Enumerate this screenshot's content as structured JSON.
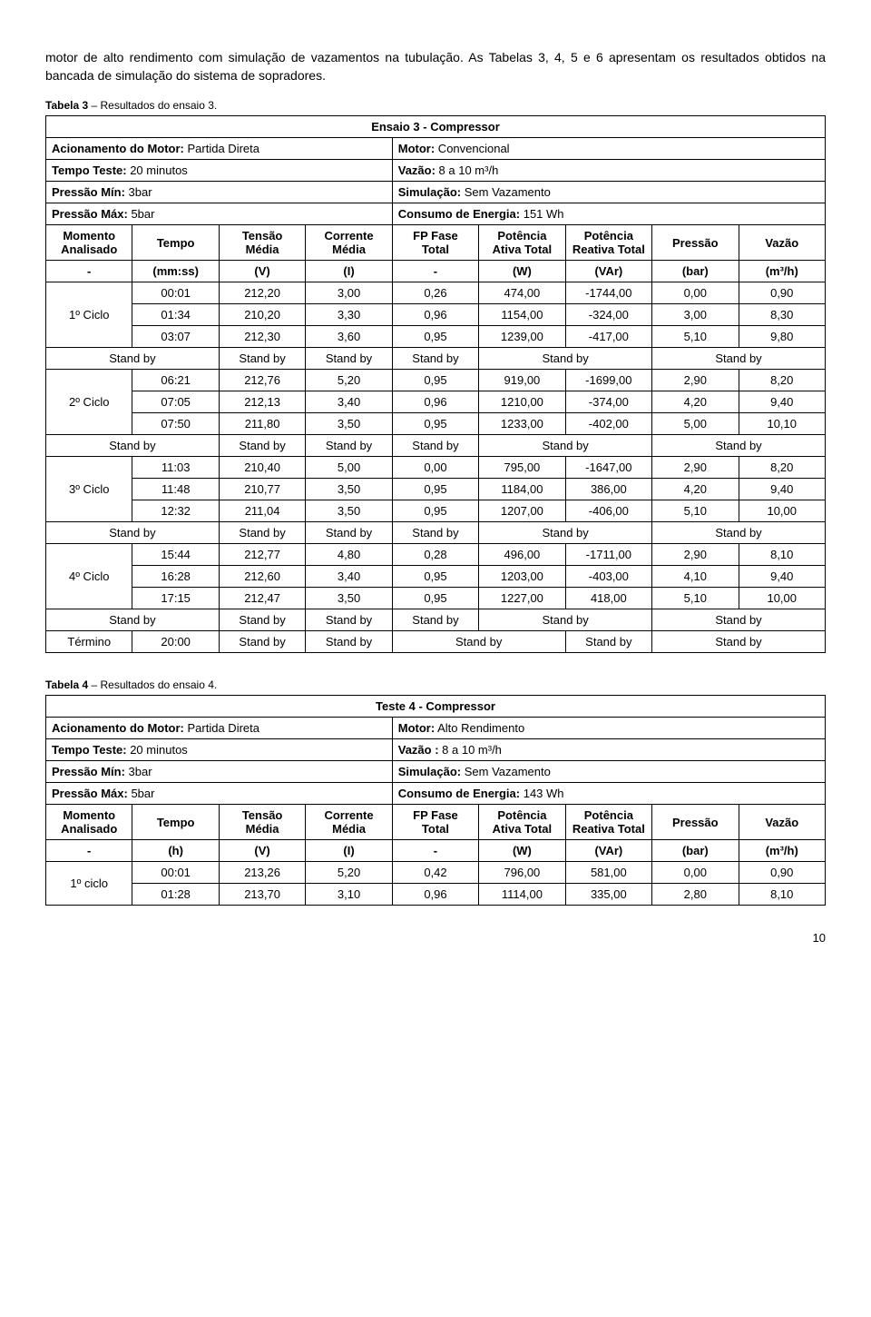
{
  "intro": "motor de alto rendimento com simulação de vazamentos na tubulação. As Tabelas 3, 4, 5 e 6 apresentam os resultados obtidos na bancada de simulação do sistema de sopradores.",
  "table3": {
    "caption": "Tabela 3 – Resultados do ensaio 3.",
    "title": "Ensaio 3 - Compressor",
    "meta": [
      [
        "Acionamento do Motor:  Partida Direta",
        "Motor: Convencional"
      ],
      [
        "Tempo Teste: 20 minutos",
        "Vazão: 8 a 10 m³/h"
      ],
      [
        "Pressão Mín: 3bar",
        "Simulação: Sem Vazamento"
      ],
      [
        "Pressão Máx: 5bar",
        "Consumo de Energia: 151 Wh"
      ]
    ],
    "headers": [
      "Momento Analisado",
      "Tempo",
      "Tensão Média",
      "Corrente Média",
      "FP Fase Total",
      "Potência Ativa Total",
      "Potência Reativa Total",
      "Pressão",
      "Vazão"
    ],
    "units": [
      "-",
      "(mm:ss)",
      "(V)",
      "(I)",
      "-",
      "(W)",
      "(VAr)",
      "(bar)",
      "(m³/h)"
    ],
    "cycles": [
      {
        "label": "1º Ciclo",
        "rows": [
          [
            "00:01",
            "212,20",
            "3,00",
            "0,26",
            "474,00",
            "-1744,00",
            "0,00",
            "0,90"
          ],
          [
            "01:34",
            "210,20",
            "3,30",
            "0,96",
            "1154,00",
            "-324,00",
            "3,00",
            "8,30"
          ],
          [
            "03:07",
            "212,30",
            "3,60",
            "0,95",
            "1239,00",
            "-417,00",
            "5,10",
            "9,80"
          ]
        ]
      },
      {
        "label": "2º Ciclo",
        "rows": [
          [
            "06:21",
            "212,76",
            "5,20",
            "0,95",
            "919,00",
            "-1699,00",
            "2,90",
            "8,20"
          ],
          [
            "07:05",
            "212,13",
            "3,40",
            "0,96",
            "1210,00",
            "-374,00",
            "4,20",
            "9,40"
          ],
          [
            "07:50",
            "211,80",
            "3,50",
            "0,95",
            "1233,00",
            "-402,00",
            "5,00",
            "10,10"
          ]
        ]
      },
      {
        "label": "3º Ciclo",
        "rows": [
          [
            "11:03",
            "210,40",
            "5,00",
            "0,00",
            "795,00",
            "-1647,00",
            "2,90",
            "8,20"
          ],
          [
            "11:48",
            "210,77",
            "3,50",
            "0,95",
            "1184,00",
            "386,00",
            "4,20",
            "9,40"
          ],
          [
            "12:32",
            "211,04",
            "3,50",
            "0,95",
            "1207,00",
            "-406,00",
            "5,10",
            "10,00"
          ]
        ]
      },
      {
        "label": "4º Ciclo",
        "rows": [
          [
            "15:44",
            "212,77",
            "4,80",
            "0,28",
            "496,00",
            "-1711,00",
            "2,90",
            "8,10"
          ],
          [
            "16:28",
            "212,60",
            "3,40",
            "0,95",
            "1203,00",
            "-403,00",
            "4,10",
            "9,40"
          ],
          [
            "17:15",
            "212,47",
            "3,50",
            "0,95",
            "1227,00",
            "418,00",
            "5,10",
            "10,00"
          ]
        ]
      }
    ],
    "standby": "Stand by",
    "termino": {
      "label": "Término",
      "time": "20:00"
    }
  },
  "table4": {
    "caption": "Tabela 4 – Resultados do ensaio 4.",
    "title": "Teste 4 - Compressor",
    "meta": [
      [
        "Acionamento do Motor:  Partida Direta",
        "Motor: Alto Rendimento"
      ],
      [
        "Tempo Teste: 20 minutos",
        "Vazão : 8 a 10 m³/h"
      ],
      [
        "Pressão Mín: 3bar",
        "Simulação: Sem Vazamento"
      ],
      [
        "Pressão Máx: 5bar",
        "Consumo de Energia: 143 Wh"
      ]
    ],
    "headers": [
      "Momento Analisado",
      "Tempo",
      "Tensão Média",
      "Corrente Média",
      "FP Fase Total",
      "Potência Ativa Total",
      "Potência Reativa Total",
      "Pressão",
      "Vazão"
    ],
    "units": [
      "-",
      "(h)",
      "(V)",
      "(I)",
      "-",
      "(W)",
      "(VAr)",
      "(bar)",
      "(m³/h)"
    ],
    "cycle1": {
      "label": "1º ciclo",
      "rows": [
        [
          "00:01",
          "213,26",
          "5,20",
          "0,42",
          "796,00",
          "581,00",
          "0,00",
          "0,90"
        ],
        [
          "01:28",
          "213,70",
          "3,10",
          "0,96",
          "1114,00",
          "335,00",
          "2,80",
          "8,10"
        ]
      ]
    }
  },
  "page_number": "10"
}
